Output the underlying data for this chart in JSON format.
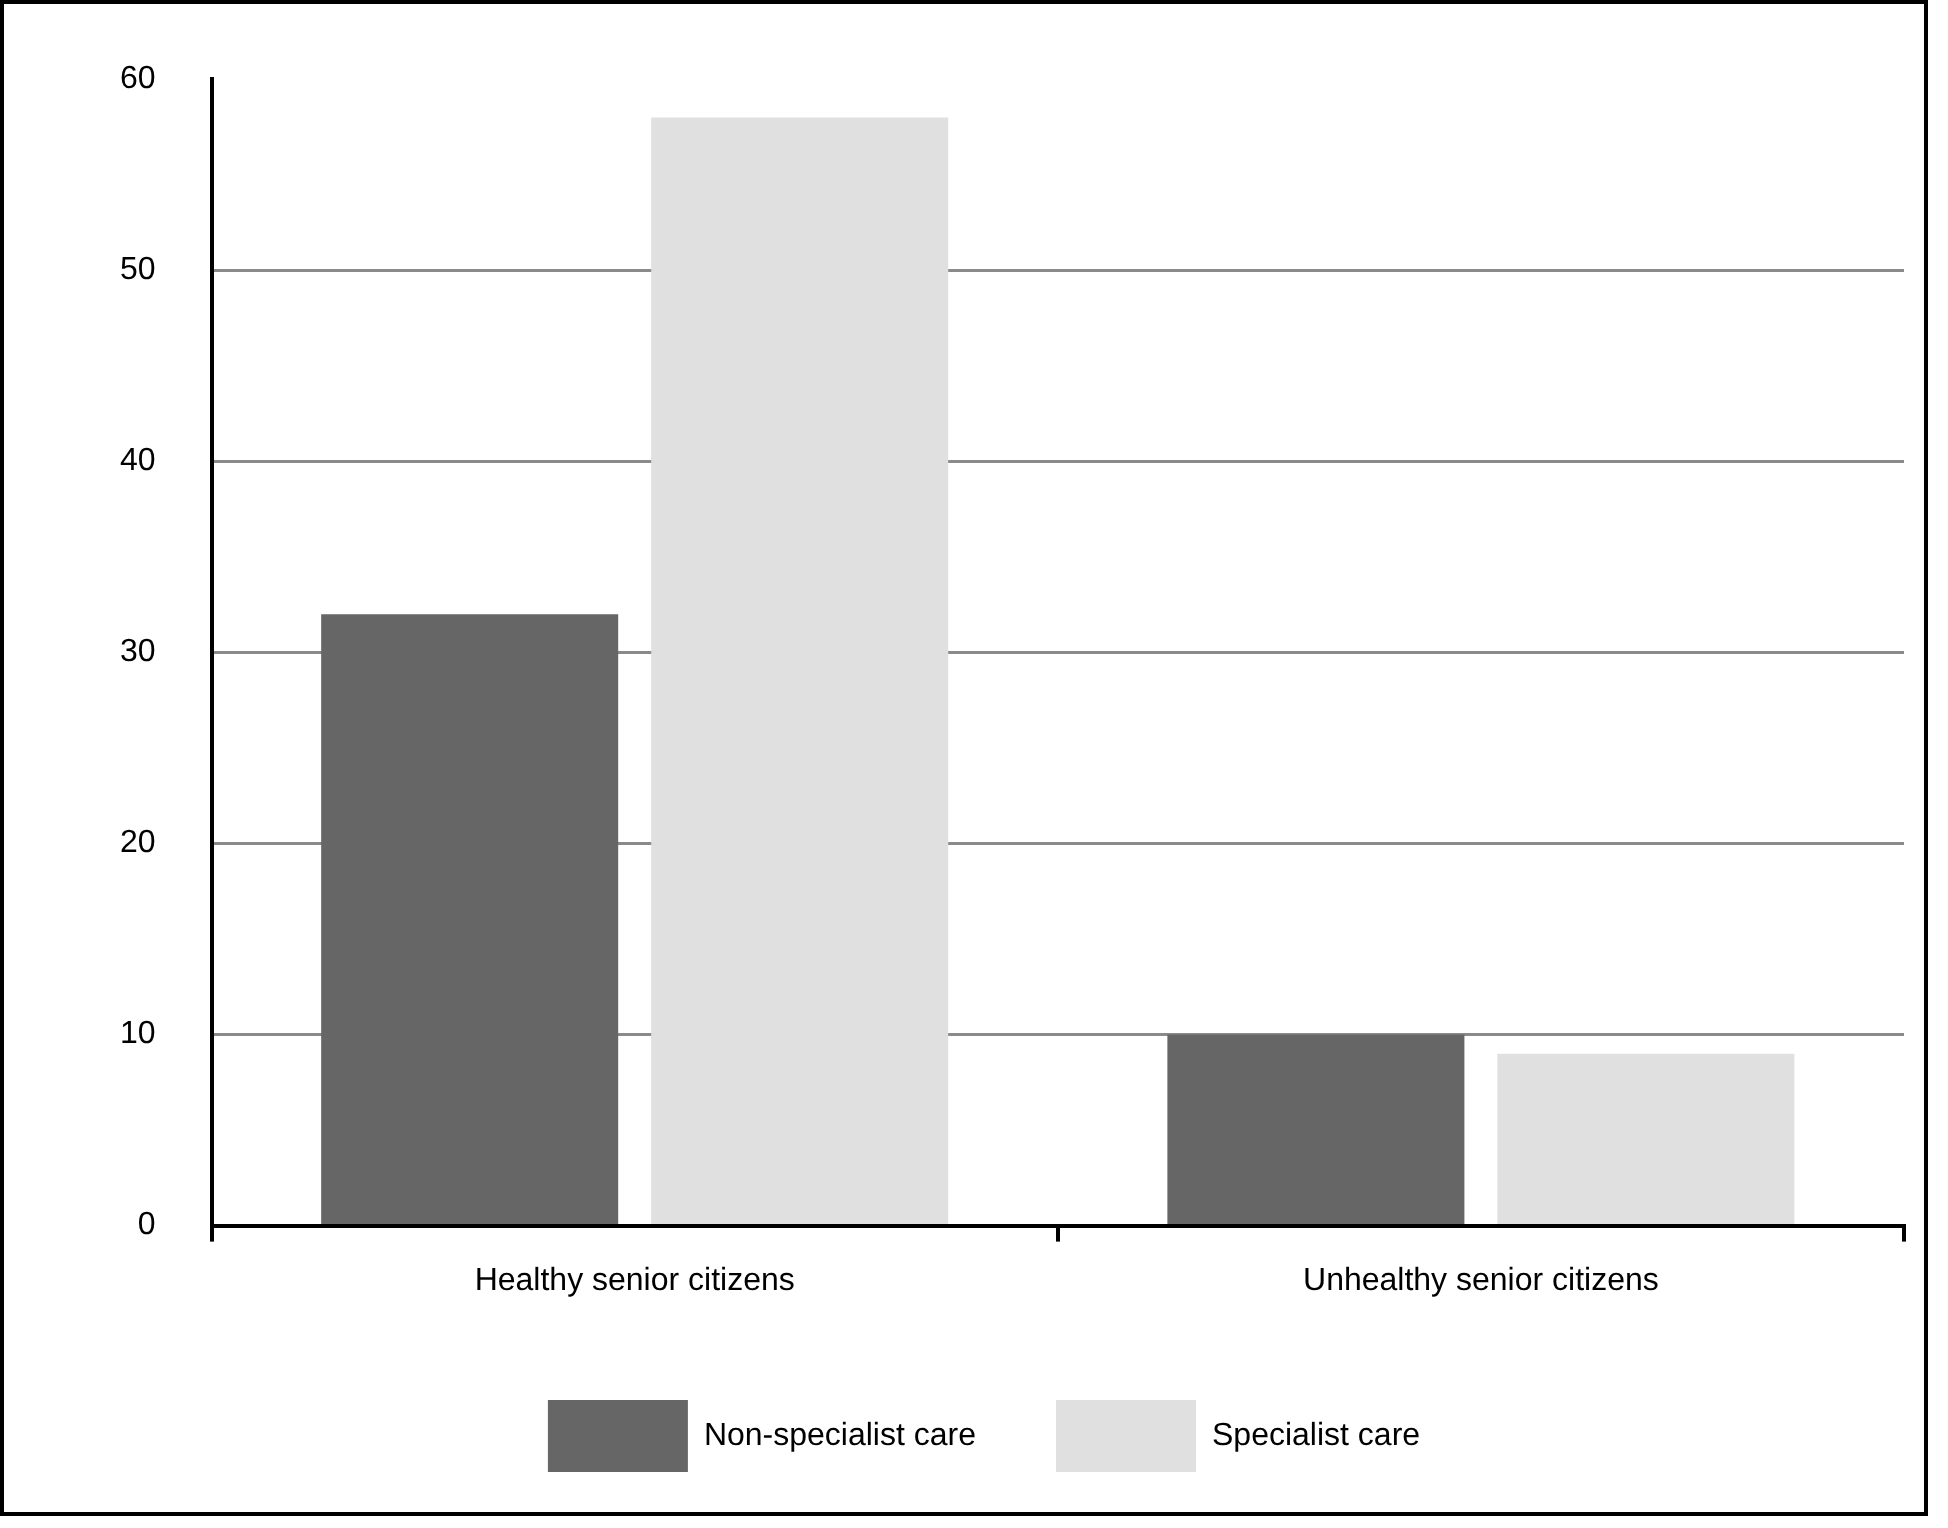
{
  "chart_data": {
    "type": "bar",
    "categories": [
      "Healthy senior citizens",
      "Unhealthy senior citizens"
    ],
    "series": [
      {
        "name": "Non-specialist care",
        "color": "#666666",
        "values": [
          32,
          10
        ]
      },
      {
        "name": "Specialist care",
        "color": "#e0e0e0",
        "values": [
          58,
          9
        ]
      }
    ],
    "ylim": [
      0,
      60
    ],
    "yticks": [
      0,
      10,
      20,
      30,
      40,
      50,
      60
    ],
    "grid": "y",
    "legend": "bottom"
  }
}
